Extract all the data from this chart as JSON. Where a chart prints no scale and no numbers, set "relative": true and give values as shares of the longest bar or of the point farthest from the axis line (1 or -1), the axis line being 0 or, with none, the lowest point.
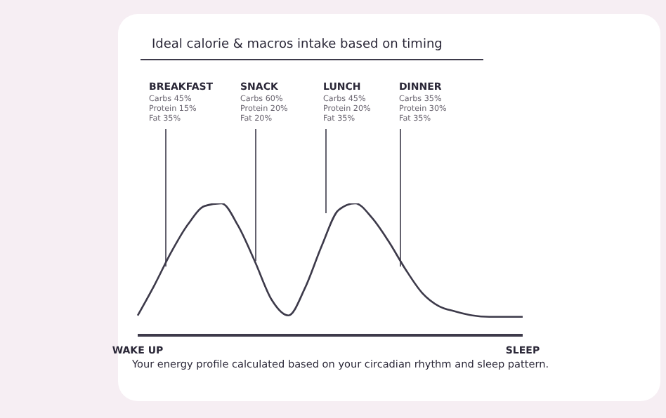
{
  "chart_data": {
    "type": "line",
    "relative": true,
    "title": "Ideal calorie & macros intake based on timing",
    "categories": [
      "WAKE UP",
      null,
      null,
      null,
      null,
      null,
      null,
      null,
      null,
      null,
      null,
      null,
      null,
      null,
      null,
      null,
      null,
      null,
      null,
      null,
      null,
      null,
      null,
      "SLEEP"
    ],
    "values": [
      0.15,
      0.38,
      0.63,
      0.84,
      0.98,
      1.0,
      0.83,
      0.56,
      0.27,
      0.15,
      0.36,
      0.68,
      0.95,
      1.0,
      0.89,
      0.71,
      0.5,
      0.32,
      0.22,
      0.18,
      0.15,
      0.14,
      0.14,
      0.14
    ],
    "color": "#3d3a4a",
    "annotations": [
      "Your energy profile  calculated based on your circadian rhythm and sleep pattern.",
      "BREAKFAST",
      "Carbs 45%",
      "Protein 15%",
      "Fat 35%",
      "SNACK",
      "Carbs 60%",
      "Protein 20%",
      "Fat 20%",
      "LUNCH",
      "Carbs 45%",
      "Protein 20%",
      "Fat 35%",
      "DINNER",
      "Carbs 35%",
      "Protein 30%",
      "Fat 35%"
    ]
  }
}
